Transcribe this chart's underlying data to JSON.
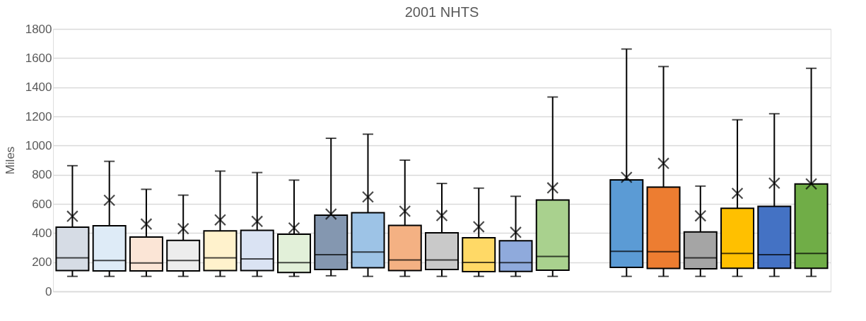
{
  "chart_data": {
    "type": "box",
    "title": "2001 NHTS",
    "ylabel": "Miles",
    "categories": [
      null,
      null,
      null,
      null,
      null,
      null,
      null,
      null,
      null,
      null,
      null,
      null,
      null,
      null,
      null,
      null,
      null,
      null,
      null,
      null,
      null
    ],
    "boxes": [
      {
        "low": 103,
        "q1": 143,
        "median": 230,
        "q3": 440,
        "high": 862,
        "mean": 515
      },
      {
        "low": 103,
        "q1": 140,
        "median": 212,
        "q3": 450,
        "high": 892,
        "mean": 625
      },
      {
        "low": 103,
        "q1": 140,
        "median": 195,
        "q3": 372,
        "high": 700,
        "mean": 462
      },
      {
        "low": 103,
        "q1": 140,
        "median": 212,
        "q3": 350,
        "high": 660,
        "mean": 430
      },
      {
        "low": 103,
        "q1": 143,
        "median": 230,
        "q3": 415,
        "high": 825,
        "mean": 490
      },
      {
        "low": 103,
        "q1": 143,
        "median": 222,
        "q3": 418,
        "high": 815,
        "mean": 480
      },
      {
        "low": 103,
        "q1": 130,
        "median": 197,
        "q3": 392,
        "high": 763,
        "mean": 435
      },
      {
        "low": 107,
        "q1": 150,
        "median": 252,
        "q3": 522,
        "high": 1050,
        "mean": 530
      },
      {
        "low": 103,
        "q1": 162,
        "median": 270,
        "q3": 540,
        "high": 1078,
        "mean": 648
      },
      {
        "low": 103,
        "q1": 143,
        "median": 215,
        "q3": 452,
        "high": 900,
        "mean": 550
      },
      {
        "low": 103,
        "q1": 150,
        "median": 215,
        "q3": 402,
        "high": 740,
        "mean": 520
      },
      {
        "low": 103,
        "q1": 135,
        "median": 198,
        "q3": 368,
        "high": 708,
        "mean": 443
      },
      {
        "low": 103,
        "q1": 137,
        "median": 197,
        "q3": 347,
        "high": 652,
        "mean": 405
      },
      {
        "low": 103,
        "q1": 145,
        "median": 240,
        "q3": 627,
        "high": 1333,
        "mean": 710
      },
      null,
      {
        "low": 103,
        "q1": 165,
        "median": 275,
        "q3": 765,
        "high": 1662,
        "mean": 782
      },
      {
        "low": 103,
        "q1": 157,
        "median": 272,
        "q3": 715,
        "high": 1542,
        "mean": 878
      },
      {
        "low": 103,
        "q1": 155,
        "median": 230,
        "q3": 408,
        "high": 722,
        "mean": 518
      },
      {
        "low": 103,
        "q1": 158,
        "median": 260,
        "q3": 570,
        "high": 1177,
        "mean": 672
      },
      {
        "low": 103,
        "q1": 158,
        "median": 252,
        "q3": 583,
        "high": 1218,
        "mean": 742
      },
      {
        "low": 103,
        "q1": 158,
        "median": 260,
        "q3": 737,
        "high": 1530,
        "mean": 737
      }
    ],
    "colors": [
      "#d6dce5",
      "#deebf7",
      "#fbe5d6",
      "#ededed",
      "#fff2cc",
      "#dae3f3",
      "#e2f0d9",
      "#8497b0",
      "#9dc3e6",
      "#f4b183",
      "#c9c9c9",
      "#ffd966",
      "#8faadc",
      "#a9d18e",
      null,
      "#5b9bd5",
      "#ed7d31",
      "#a5a5a5",
      "#ffc000",
      "#4472c4",
      "#70ad47"
    ],
    "ylim": [
      0,
      1800
    ],
    "yticks": [
      0,
      200,
      400,
      600,
      800,
      1000,
      1200,
      1400,
      1600,
      1800
    ],
    "grid": "y",
    "marker": "cross",
    "tick_labels": "y"
  }
}
